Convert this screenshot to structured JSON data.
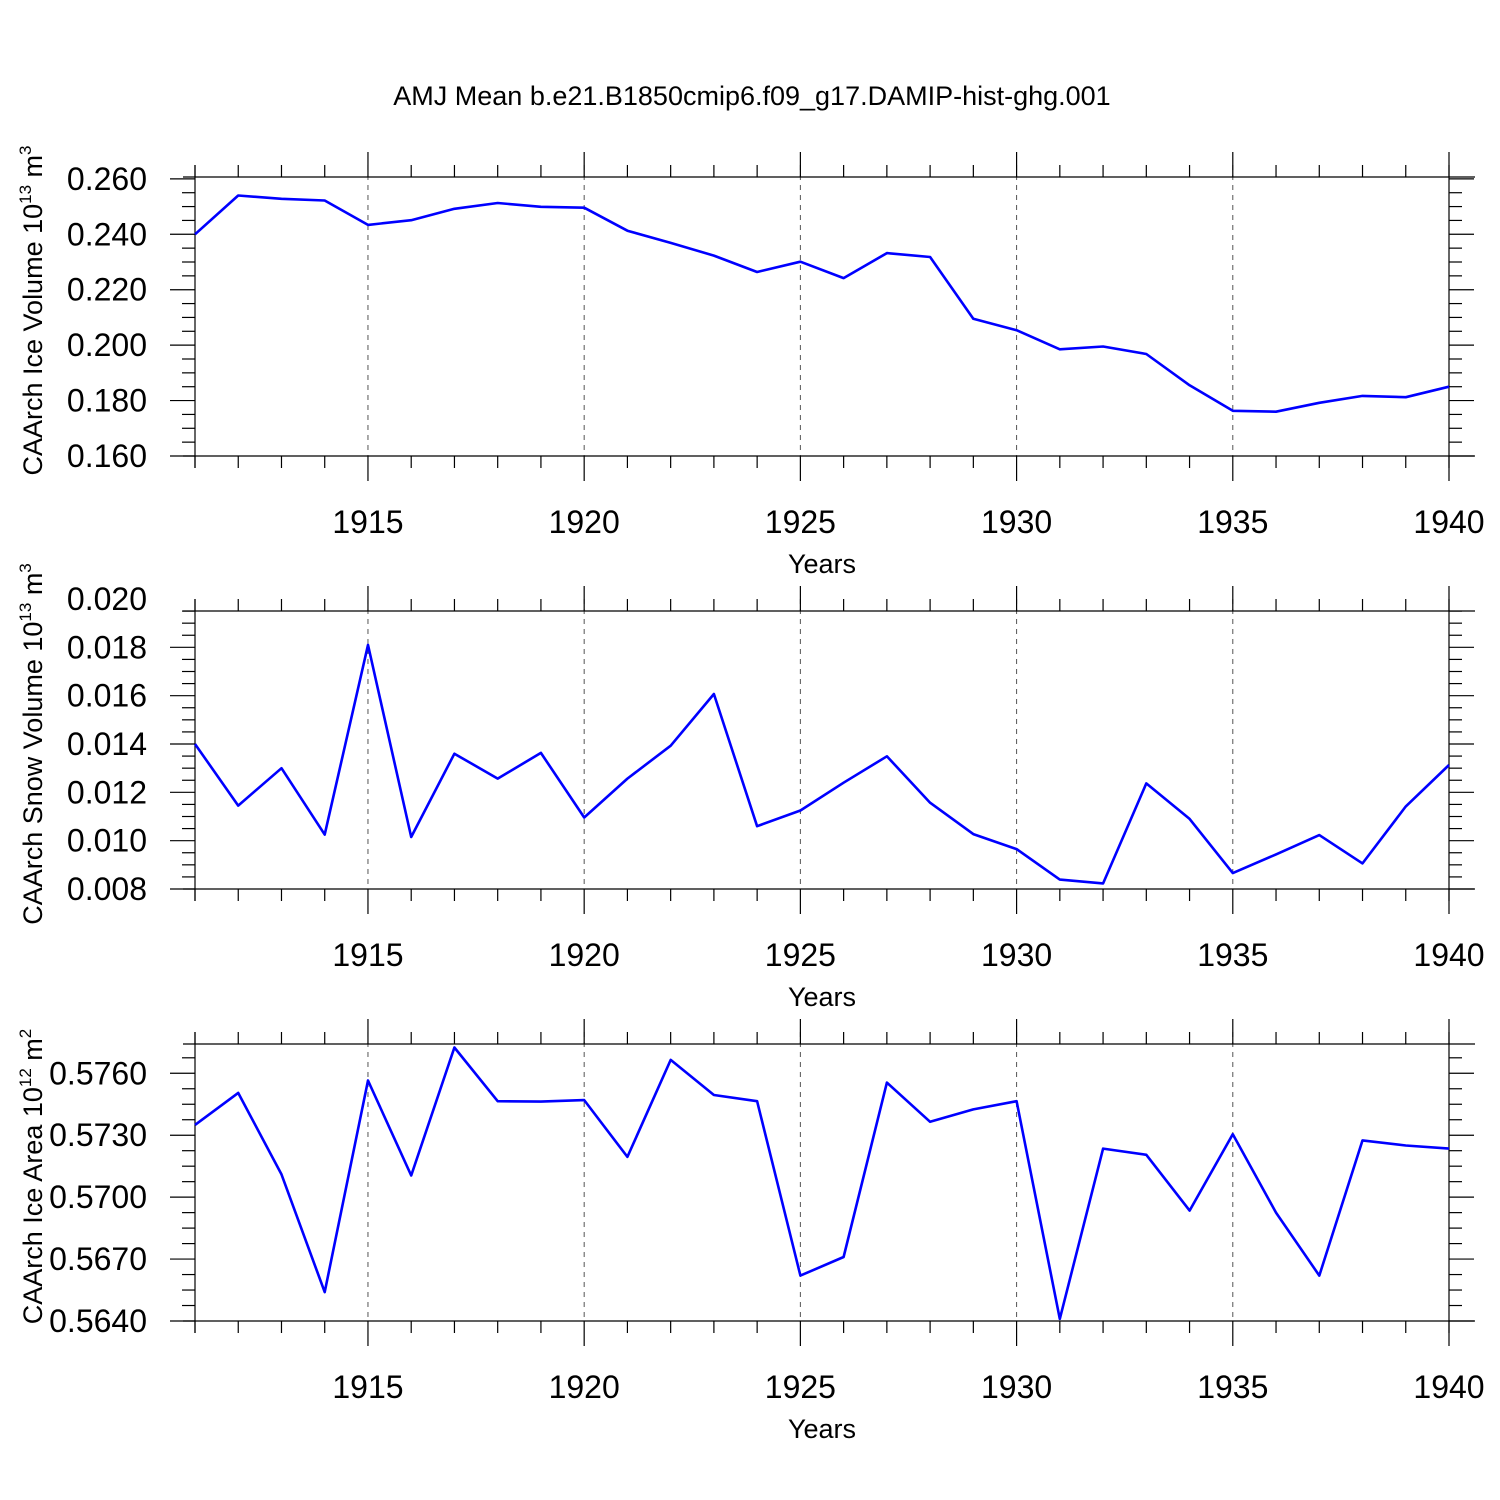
{
  "page_title": "AMJ Mean b.e21.B1850cmip6.f09_g17.DAMIP-hist-ghg.001",
  "chart_data": [
    {
      "type": "line",
      "ylabel": "CAArch Ice Volume 10",
      "ylabel_exp": "13",
      "ylabel_unit": " m",
      "ylabel_unit_exp": "3",
      "xlabel": "Years",
      "xlim": [
        1911,
        1940
      ],
      "ylim": [
        0.16,
        0.265
      ],
      "xticks": [
        "1915",
        "1920",
        "1925",
        "1930",
        "1935",
        "1940"
      ],
      "yticks": [
        "0.160",
        "0.180",
        "0.200",
        "0.220",
        "0.240",
        "0.260"
      ],
      "grid": "vertical dashed at major x ticks",
      "color": "#0000ff",
      "x": [
        1911,
        1912,
        1913,
        1914,
        1915,
        1916,
        1917,
        1918,
        1919,
        1920,
        1921,
        1922,
        1923,
        1924,
        1925,
        1926,
        1927,
        1928,
        1929,
        1930,
        1931,
        1932,
        1933,
        1934,
        1935,
        1936,
        1937,
        1938,
        1939,
        1940
      ],
      "y": [
        0.24,
        0.254,
        0.2528,
        0.2522,
        0.2434,
        0.2451,
        0.2492,
        0.2513,
        0.2499,
        0.2496,
        0.2413,
        0.2369,
        0.2323,
        0.2264,
        0.2301,
        0.2242,
        0.2332,
        0.2318,
        0.2095,
        0.2054,
        0.1985,
        0.1995,
        0.1968,
        0.1855,
        0.1763,
        0.176,
        0.1792,
        0.1817,
        0.1812,
        0.185
      ]
    },
    {
      "type": "line",
      "ylabel": "CAArch Snow Volume 10",
      "ylabel_exp": "13",
      "ylabel_unit": " m",
      "ylabel_unit_exp": "3",
      "xlabel": "Years",
      "xlim": [
        1911,
        1940
      ],
      "ylim": [
        0.008,
        0.02
      ],
      "xticks": [
        "1915",
        "1920",
        "1925",
        "1930",
        "1935",
        "1940"
      ],
      "yticks": [
        "0.008",
        "0.010",
        "0.012",
        "0.014",
        "0.016",
        "0.018",
        "0.020"
      ],
      "grid": "vertical dashed at major x ticks",
      "color": "#0000ff",
      "x": [
        1911,
        1912,
        1913,
        1914,
        1915,
        1916,
        1917,
        1918,
        1919,
        1920,
        1921,
        1922,
        1923,
        1924,
        1925,
        1926,
        1927,
        1928,
        1929,
        1930,
        1931,
        1932,
        1933,
        1934,
        1935,
        1936,
        1937,
        1938,
        1939,
        1940
      ],
      "y": [
        0.014,
        0.01145,
        0.013,
        0.01025,
        0.0181,
        0.01015,
        0.0136,
        0.01257,
        0.01363,
        0.01096,
        0.01257,
        0.01393,
        0.01607,
        0.0106,
        0.01125,
        0.0124,
        0.01349,
        0.01157,
        0.01027,
        0.00965,
        0.00839,
        0.00823,
        0.01237,
        0.0109,
        0.00866,
        0.00943,
        0.01023,
        0.00906,
        0.01142,
        0.01313
      ]
    },
    {
      "type": "line",
      "ylabel": "CAArch Ice Area 10",
      "ylabel_exp": "12",
      "ylabel_unit": " m",
      "ylabel_unit_exp": "2",
      "xlabel": "Years",
      "xlim": [
        1911,
        1940
      ],
      "ylim": [
        0.564,
        0.578
      ],
      "xticks": [
        "1915",
        "1920",
        "1925",
        "1930",
        "1935",
        "1940"
      ],
      "yticks": [
        "0.5640",
        "0.5670",
        "0.5700",
        "0.5730",
        "0.5760"
      ],
      "grid": "vertical dashed at major x ticks",
      "color": "#0000ff",
      "x": [
        1911,
        1912,
        1913,
        1914,
        1915,
        1916,
        1917,
        1918,
        1919,
        1920,
        1921,
        1922,
        1923,
        1924,
        1925,
        1926,
        1927,
        1928,
        1929,
        1930,
        1931,
        1932,
        1933,
        1934,
        1935,
        1936,
        1937,
        1938,
        1939,
        1940
      ],
      "y": [
        0.5735,
        0.57505,
        0.5711,
        0.5654,
        0.57565,
        0.57105,
        0.57725,
        0.57465,
        0.57463,
        0.5747,
        0.57195,
        0.57665,
        0.57495,
        0.57465,
        0.5662,
        0.5671,
        0.57555,
        0.57365,
        0.57425,
        0.57465,
        0.5641,
        0.57235,
        0.57205,
        0.56935,
        0.57305,
        0.56925,
        0.5662,
        0.57275,
        0.5725,
        0.57235
      ]
    }
  ]
}
